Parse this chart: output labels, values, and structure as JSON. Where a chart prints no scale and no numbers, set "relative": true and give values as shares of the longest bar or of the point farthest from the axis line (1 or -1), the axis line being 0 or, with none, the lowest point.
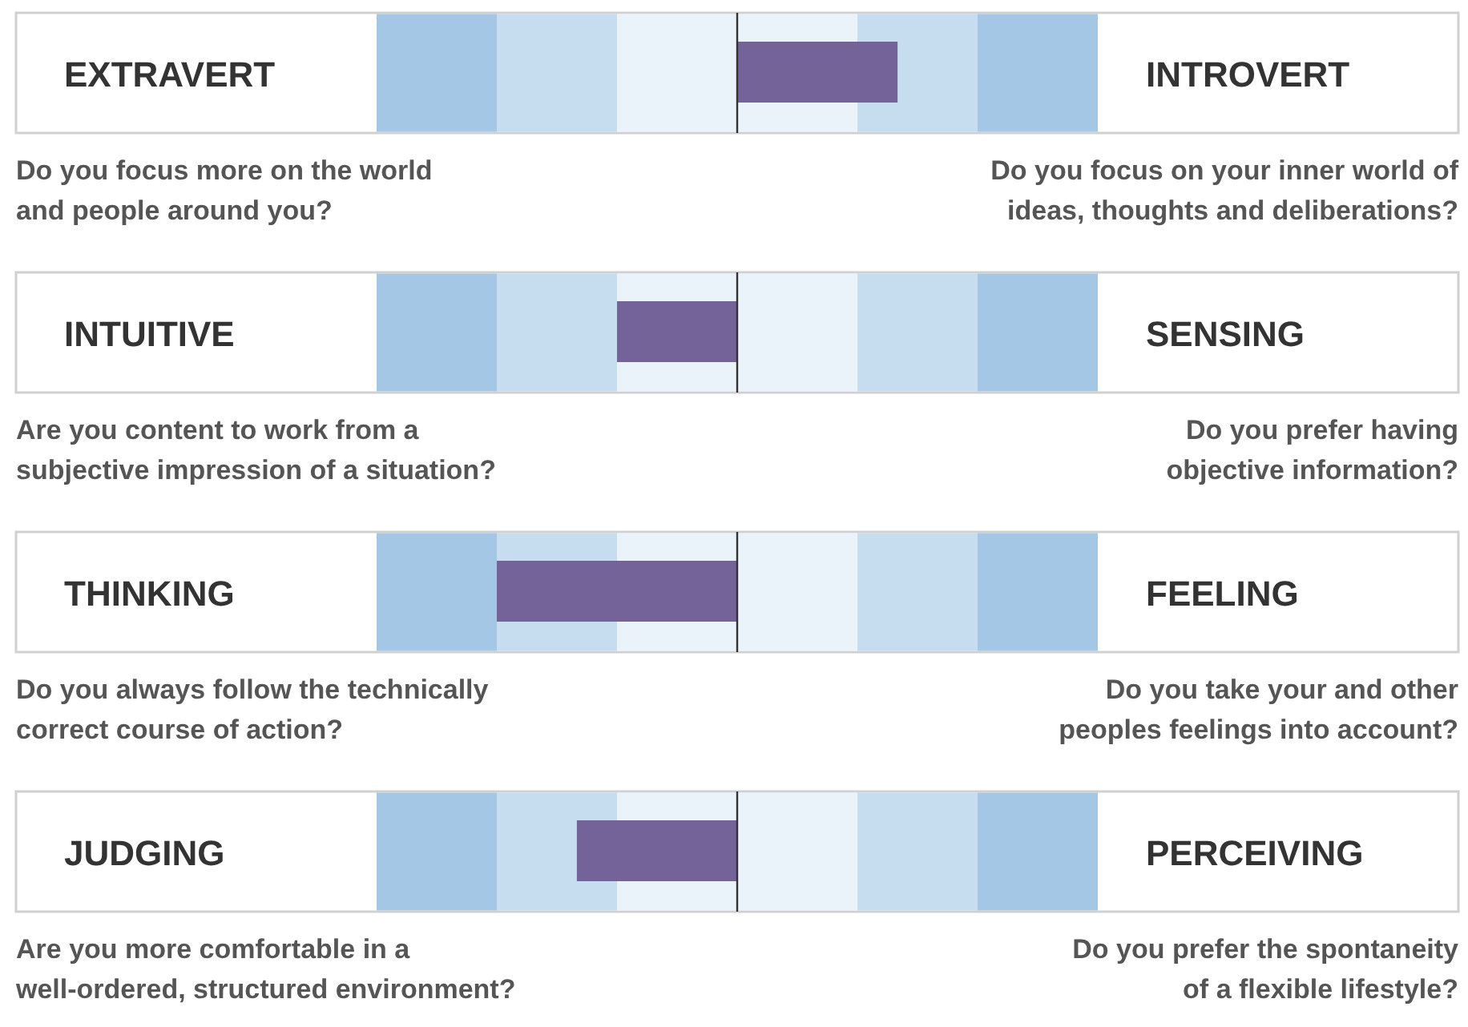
{
  "chart_data": {
    "type": "bar",
    "orientation": "horizontal",
    "relative": true,
    "categories": [
      "EXTRAVERT",
      "INTUITIVE",
      "THINKING",
      "JUDGING"
    ],
    "values": [
      0.667,
      -0.5,
      -1,
      -0.667
    ],
    "color": "#736399",
    "annotations": [
      "INTROVERT",
      "Do you focus more on the world\nand people around you?",
      "Do you focus on your inner world of\nideas, thoughts and deliberations?",
      "SENSING",
      "Are you content to work from a\nsubjective impression of a situation?",
      "Do you prefer having\nobjective information?",
      "FEELING",
      "Do you always follow the technically\ncorrect course of action?",
      "Do you take your and other\npeoples feelings into account?",
      "PERCEIVING",
      "Are you more comfortable in a\nwell-ordered, structured environment?",
      "Do you prefer the spontaneity\nof a flexible lifestyle?"
    ]
  }
}
